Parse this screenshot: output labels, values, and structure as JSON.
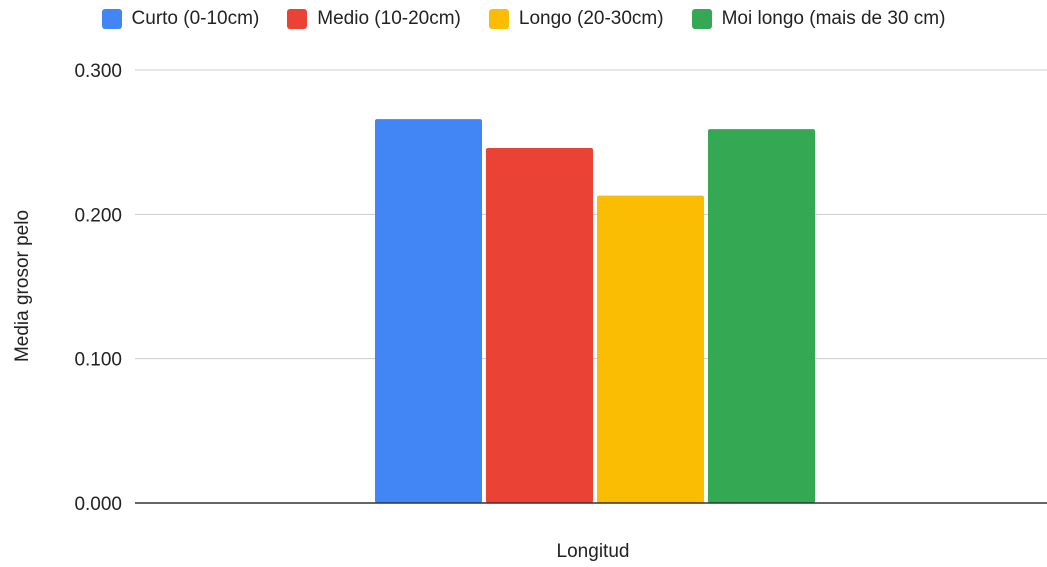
{
  "chart_data": {
    "type": "bar",
    "title": "",
    "xlabel": "Longitud",
    "ylabel": "Media grosor pelo",
    "ylim": [
      0,
      0.3
    ],
    "yticks": [
      "0.000",
      "0.100",
      "0.200",
      "0.300"
    ],
    "categories": [
      ""
    ],
    "grid": true,
    "legend_position": "top",
    "series": [
      {
        "name": "Curto (0-10cm)",
        "values": [
          0.266
        ],
        "color": "#4285F4"
      },
      {
        "name": "Medio (10-20cm)",
        "values": [
          0.246
        ],
        "color": "#EA4335"
      },
      {
        "name": "Longo (20-30cm)",
        "values": [
          0.213
        ],
        "color": "#FBBC04"
      },
      {
        "name": "Moi longo (mais de 30 cm)",
        "values": [
          0.259
        ],
        "color": "#34A853"
      }
    ]
  }
}
